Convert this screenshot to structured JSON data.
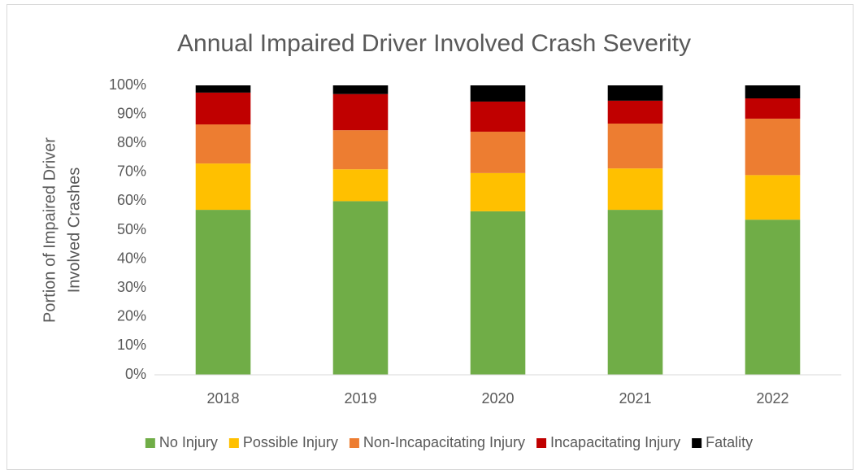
{
  "chart_data": {
    "type": "stacked_bar",
    "title": "Annual Impaired Driver Involved Crash Severity",
    "y_label": [
      "Portion of Impaired Driver",
      "Involved Crashes"
    ],
    "categories": [
      "2018",
      "2019",
      "2020",
      "2021",
      "2022"
    ],
    "series": [
      {
        "name": "No Injury",
        "color": "#70ad47",
        "values": [
          57,
          60,
          56.5,
          57,
          53.6
        ]
      },
      {
        "name": "Possible Injury",
        "color": "#ffc000",
        "values": [
          16,
          11,
          13.2,
          14.3,
          15.4
        ]
      },
      {
        "name": "Non-Incapacitating Injury",
        "color": "#ed7d31",
        "values": [
          13.5,
          13.5,
          14.3,
          15.5,
          19.5
        ]
      },
      {
        "name": "Incapacitating Injury",
        "color": "#c00000",
        "values": [
          11,
          12.5,
          10.4,
          7.9,
          7
        ]
      },
      {
        "name": "Fatality",
        "color": "#000000",
        "values": [
          2.5,
          3,
          5.6,
          5.3,
          4.5
        ]
      }
    ],
    "ylim": [
      0,
      100
    ],
    "yticks": [
      {
        "value": 0,
        "label": "0%"
      },
      {
        "value": 10,
        "label": "10%"
      },
      {
        "value": 20,
        "label": "20%"
      },
      {
        "value": 30,
        "label": "30%"
      },
      {
        "value": 40,
        "label": "40%"
      },
      {
        "value": 50,
        "label": "50%"
      },
      {
        "value": 60,
        "label": "60%"
      },
      {
        "value": 70,
        "label": "70%"
      },
      {
        "value": 80,
        "label": "80%"
      },
      {
        "value": 90,
        "label": "90%"
      },
      {
        "value": 100,
        "label": "100%"
      }
    ],
    "grid": false,
    "legend": "bottom"
  }
}
